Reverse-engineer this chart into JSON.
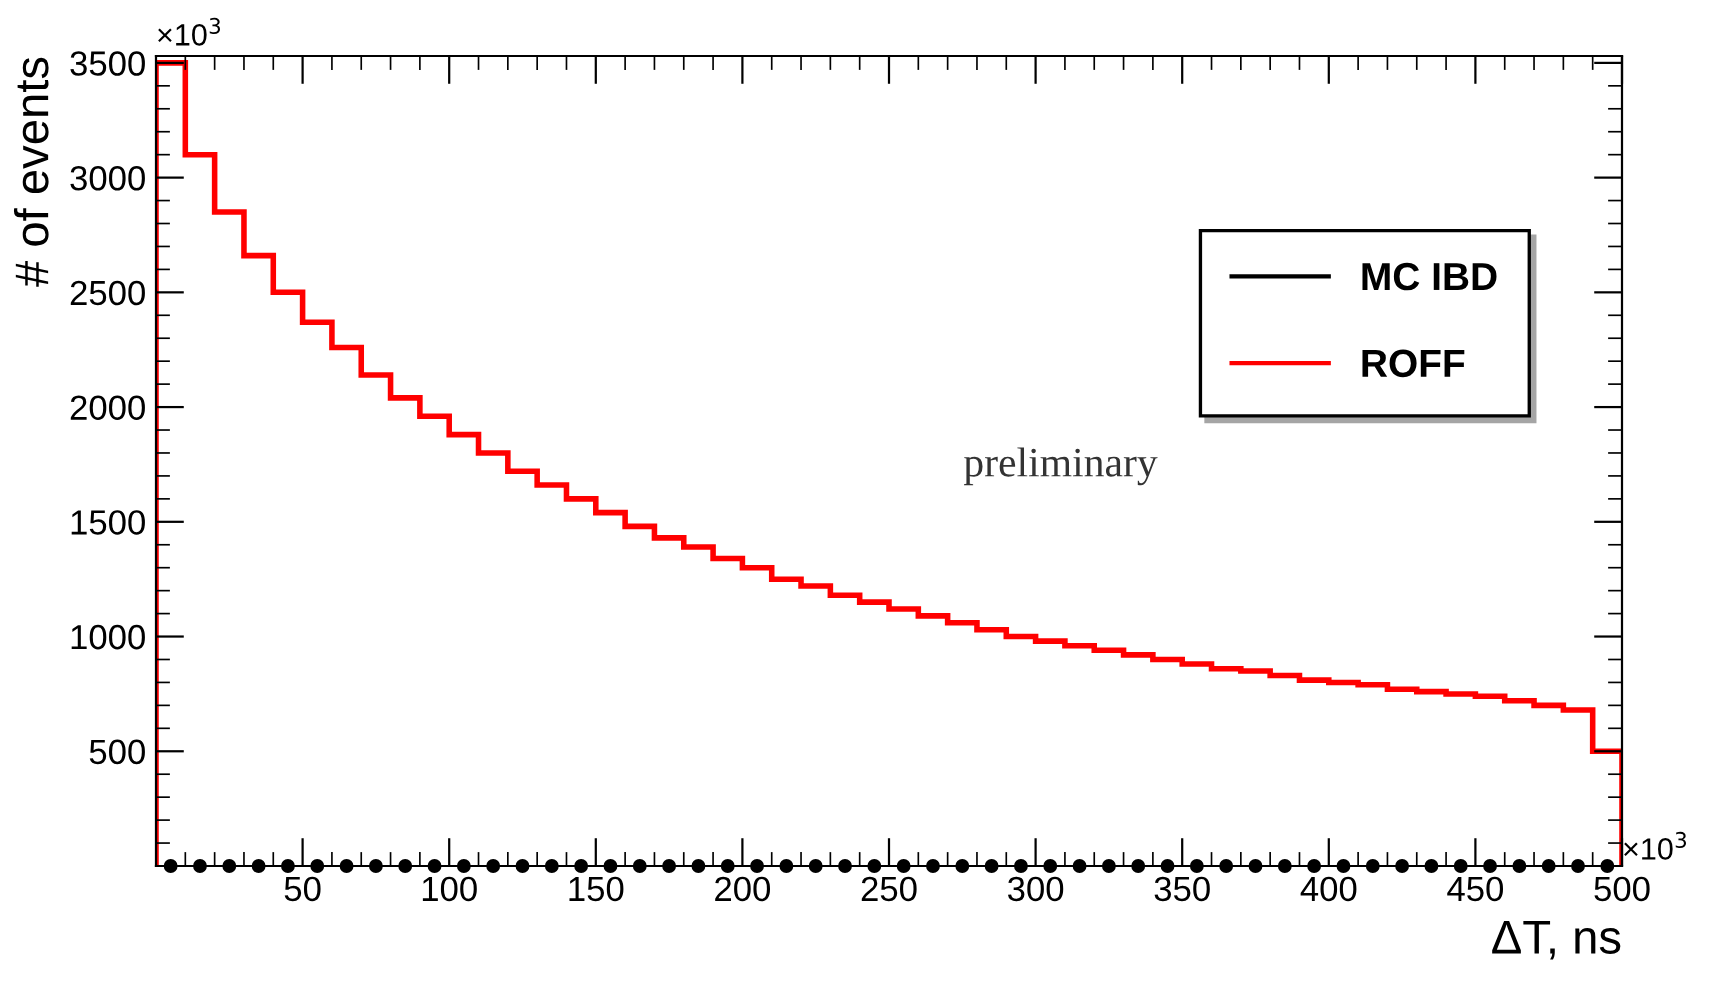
{
  "chart_data": {
    "type": "histogram",
    "xlabel": "ΔT, ns",
    "ylabel": "# of events",
    "annotations": [
      "preliminary",
      "×10$^{3}$",
      "×10$^{3}$"
    ],
    "bins": [
      0,
      10,
      20,
      30,
      40,
      50,
      60,
      70,
      80,
      90,
      100,
      110,
      120,
      130,
      140,
      150,
      160,
      170,
      180,
      190,
      200,
      210,
      220,
      230,
      240,
      250,
      260,
      270,
      280,
      290,
      300,
      310,
      320,
      330,
      340,
      350,
      360,
      370,
      380,
      390,
      400,
      410,
      420,
      430,
      440,
      450,
      460,
      470,
      480,
      490,
      500
    ],
    "series": [
      {
        "name": "MC IBD",
        "type": "scatter",
        "color": "#000000",
        "marker": "circle",
        "x": [
          5,
          15,
          25,
          35,
          45,
          55,
          65,
          75,
          85,
          95,
          105,
          115,
          125,
          135,
          145,
          155,
          165,
          175,
          185,
          195,
          205,
          215,
          225,
          235,
          245,
          255,
          265,
          275,
          285,
          295,
          305,
          315,
          325,
          335,
          345,
          355,
          365,
          375,
          385,
          395,
          405,
          415,
          425,
          435,
          445,
          455,
          465,
          475,
          485,
          495
        ],
        "values": [
          0,
          0,
          0,
          0,
          0,
          0,
          0,
          0,
          0,
          0,
          0,
          0,
          0,
          0,
          0,
          0,
          0,
          0,
          0,
          0,
          0,
          0,
          0,
          0,
          0,
          0,
          0,
          0,
          0,
          0,
          0,
          0,
          0,
          0,
          0,
          0,
          0,
          0,
          0,
          0,
          0,
          0,
          0,
          0,
          0,
          0,
          0,
          0,
          0,
          0
        ]
      },
      {
        "name": "ROFF",
        "color": "#ff0000",
        "values": [
          3500,
          3100,
          2850,
          2660,
          2500,
          2370,
          2260,
          2140,
          2040,
          1960,
          1880,
          1800,
          1720,
          1660,
          1600,
          1540,
          1480,
          1430,
          1390,
          1340,
          1300,
          1250,
          1220,
          1180,
          1150,
          1120,
          1090,
          1060,
          1030,
          1000,
          980,
          960,
          940,
          920,
          900,
          880,
          860,
          850,
          830,
          810,
          800,
          790,
          770,
          760,
          750,
          740,
          720,
          700,
          680,
          500
        ]
      }
    ],
    "xlim": [
      0,
      500
    ],
    "xticks": [
      50,
      100,
      150,
      200,
      250,
      300,
      350,
      400,
      450,
      500
    ],
    "ylim": [
      0,
      3530
    ],
    "yticks": [
      500,
      1000,
      1500,
      2000,
      2500,
      3000,
      3500
    ],
    "grid": false,
    "legend": "right"
  }
}
